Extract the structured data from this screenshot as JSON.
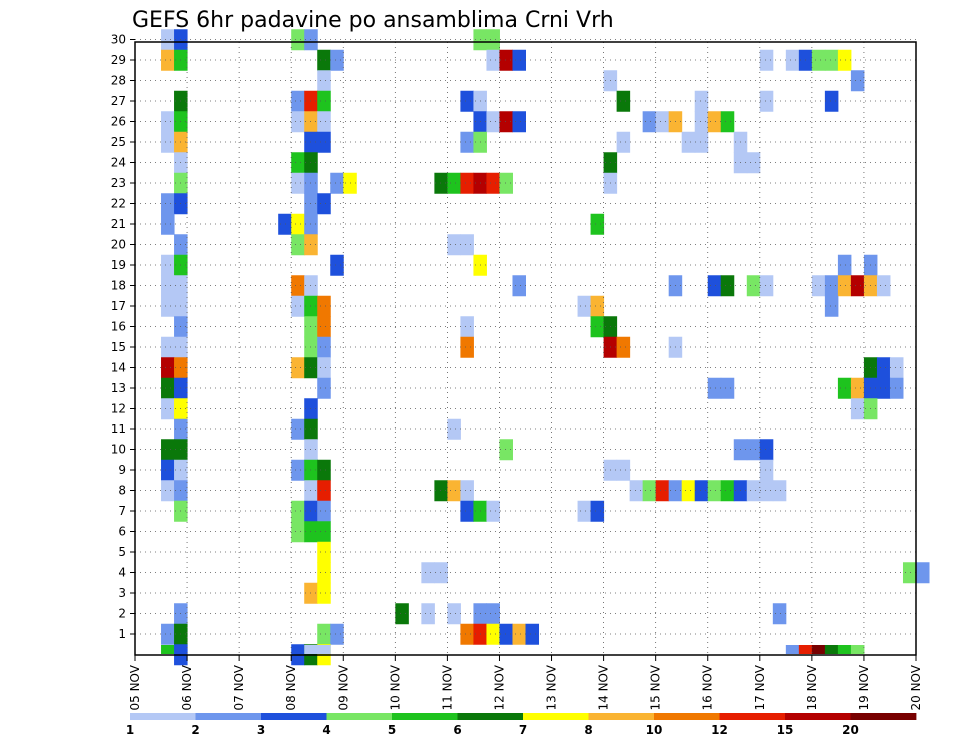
{
  "chart_data": {
    "type": "heatmap",
    "title": "GEFS 6hr padavine po ansamblima Crni Vrh",
    "x_ticks": [
      "05 NOV",
      "06 NOV",
      "07 NOV",
      "08 NOV",
      "09 NOV",
      "10 NOV",
      "11 NOV",
      "12 NOV",
      "13 NOV",
      "14 NOV",
      "15 NOV",
      "16 NOV",
      "17 NOV",
      "18 NOV",
      "19 NOV",
      "20 NOV"
    ],
    "y_ticks": [
      "1",
      "2",
      "3",
      "4",
      "5",
      "6",
      "7",
      "8",
      "9",
      "10",
      "11",
      "12",
      "13",
      "14",
      "15",
      "16",
      "17",
      "18",
      "19",
      "20",
      "21",
      "22",
      "23",
      "24",
      "25",
      "26",
      "27",
      "28",
      "29",
      "30"
    ],
    "x_unit": "6-hour steps from 05 NOV 00 UTC (4 per day)",
    "levels": [
      {
        "label": "1",
        "color": "#b4c8f5"
      },
      {
        "label": "2",
        "color": "#6e96ed"
      },
      {
        "label": "3",
        "color": "#1e50dc"
      },
      {
        "label": "4",
        "color": "#78e664"
      },
      {
        "label": "5",
        "color": "#1ec31e"
      },
      {
        "label": "6",
        "color": "#0a780a"
      },
      {
        "label": "7",
        "color": "#ffff00"
      },
      {
        "label": "8",
        "color": "#fab432"
      },
      {
        "label": "10",
        "color": "#f07800"
      },
      {
        "label": "12",
        "color": "#e61e00"
      },
      {
        "label": "15",
        "color": "#b40000"
      },
      {
        "label": "20",
        "color": "#780000"
      }
    ],
    "cells": [
      [
        2,
        30,
        0
      ],
      [
        3,
        30,
        2
      ],
      [
        12,
        30,
        3
      ],
      [
        13,
        30,
        1
      ],
      [
        26,
        30,
        3
      ],
      [
        27,
        30,
        3
      ],
      [
        2,
        29,
        7
      ],
      [
        3,
        29,
        4
      ],
      [
        14,
        29,
        5
      ],
      [
        15,
        29,
        1
      ],
      [
        27,
        29,
        0
      ],
      [
        28,
        29,
        10
      ],
      [
        29,
        29,
        2
      ],
      [
        48,
        29,
        0
      ],
      [
        50,
        29,
        0
      ],
      [
        51,
        29,
        2
      ],
      [
        52,
        29,
        3
      ],
      [
        53,
        29,
        3
      ],
      [
        54,
        29,
        6
      ],
      [
        14,
        28,
        0
      ],
      [
        36,
        28,
        0
      ],
      [
        55,
        28,
        1
      ],
      [
        3,
        27,
        5
      ],
      [
        12,
        27,
        1
      ],
      [
        13,
        27,
        9
      ],
      [
        14,
        27,
        4
      ],
      [
        25,
        27,
        2
      ],
      [
        26,
        27,
        0
      ],
      [
        37,
        27,
        5
      ],
      [
        43,
        27,
        0
      ],
      [
        48,
        27,
        0
      ],
      [
        53,
        27,
        2
      ],
      [
        2,
        26,
        0
      ],
      [
        3,
        26,
        4
      ],
      [
        12,
        26,
        0
      ],
      [
        13,
        26,
        7
      ],
      [
        14,
        26,
        0
      ],
      [
        26,
        26,
        2
      ],
      [
        27,
        26,
        0
      ],
      [
        28,
        26,
        10
      ],
      [
        29,
        26,
        2
      ],
      [
        39,
        26,
        1
      ],
      [
        40,
        26,
        0
      ],
      [
        41,
        26,
        7
      ],
      [
        43,
        26,
        0
      ],
      [
        44,
        26,
        7
      ],
      [
        45,
        26,
        4
      ],
      [
        2,
        25,
        0
      ],
      [
        3,
        25,
        7
      ],
      [
        13,
        25,
        2
      ],
      [
        14,
        25,
        2
      ],
      [
        25,
        25,
        1
      ],
      [
        26,
        25,
        3
      ],
      [
        37,
        25,
        0
      ],
      [
        42,
        25,
        0
      ],
      [
        43,
        25,
        0
      ],
      [
        46,
        25,
        0
      ],
      [
        3,
        24,
        0
      ],
      [
        12,
        24,
        4
      ],
      [
        13,
        24,
        5
      ],
      [
        36,
        24,
        5
      ],
      [
        46,
        24,
        0
      ],
      [
        47,
        24,
        0
      ],
      [
        3,
        23,
        3
      ],
      [
        12,
        23,
        0
      ],
      [
        13,
        23,
        1
      ],
      [
        15,
        23,
        1
      ],
      [
        16,
        23,
        6
      ],
      [
        23,
        23,
        5
      ],
      [
        24,
        23,
        4
      ],
      [
        25,
        23,
        9
      ],
      [
        26,
        23,
        10
      ],
      [
        27,
        23,
        9
      ],
      [
        28,
        23,
        3
      ],
      [
        36,
        23,
        0
      ],
      [
        2,
        22,
        1
      ],
      [
        3,
        22,
        2
      ],
      [
        13,
        22,
        1
      ],
      [
        14,
        22,
        2
      ],
      [
        2,
        21,
        1
      ],
      [
        11,
        21,
        2
      ],
      [
        12,
        21,
        6
      ],
      [
        13,
        21,
        1
      ],
      [
        35,
        21,
        4
      ],
      [
        3,
        20,
        1
      ],
      [
        12,
        20,
        3
      ],
      [
        13,
        20,
        7
      ],
      [
        24,
        20,
        0
      ],
      [
        25,
        20,
        0
      ],
      [
        2,
        19,
        0
      ],
      [
        3,
        19,
        4
      ],
      [
        15,
        19,
        2
      ],
      [
        26,
        19,
        6
      ],
      [
        54,
        19,
        1
      ],
      [
        56,
        19,
        1
      ],
      [
        2,
        18,
        0
      ],
      [
        3,
        18,
        0
      ],
      [
        12,
        18,
        8
      ],
      [
        13,
        18,
        0
      ],
      [
        29,
        18,
        1
      ],
      [
        41,
        18,
        1
      ],
      [
        44,
        18,
        2
      ],
      [
        45,
        18,
        5
      ],
      [
        47,
        18,
        3
      ],
      [
        48,
        18,
        0
      ],
      [
        52,
        18,
        0
      ],
      [
        53,
        18,
        1
      ],
      [
        54,
        18,
        7
      ],
      [
        55,
        18,
        10
      ],
      [
        56,
        18,
        7
      ],
      [
        57,
        18,
        0
      ],
      [
        2,
        17,
        0
      ],
      [
        3,
        17,
        0
      ],
      [
        12,
        17,
        0
      ],
      [
        13,
        17,
        4
      ],
      [
        14,
        17,
        8
      ],
      [
        34,
        17,
        0
      ],
      [
        35,
        17,
        7
      ],
      [
        53,
        17,
        1
      ],
      [
        3,
        16,
        1
      ],
      [
        13,
        16,
        3
      ],
      [
        14,
        16,
        8
      ],
      [
        25,
        16,
        0
      ],
      [
        35,
        16,
        4
      ],
      [
        36,
        16,
        5
      ],
      [
        2,
        15,
        0
      ],
      [
        3,
        15,
        0
      ],
      [
        13,
        15,
        3
      ],
      [
        14,
        15,
        1
      ],
      [
        25,
        15,
        8
      ],
      [
        36,
        15,
        10
      ],
      [
        37,
        15,
        8
      ],
      [
        41,
        15,
        0
      ],
      [
        2,
        14,
        10
      ],
      [
        3,
        14,
        8
      ],
      [
        12,
        14,
        7
      ],
      [
        13,
        14,
        5
      ],
      [
        14,
        14,
        0
      ],
      [
        56,
        14,
        5
      ],
      [
        57,
        14,
        2
      ],
      [
        58,
        14,
        0
      ],
      [
        2,
        13,
        5
      ],
      [
        3,
        13,
        2
      ],
      [
        14,
        13,
        1
      ],
      [
        44,
        13,
        1
      ],
      [
        45,
        13,
        1
      ],
      [
        54,
        13,
        4
      ],
      [
        55,
        13,
        7
      ],
      [
        56,
        13,
        2
      ],
      [
        57,
        13,
        2
      ],
      [
        58,
        13,
        1
      ],
      [
        2,
        12,
        0
      ],
      [
        3,
        12,
        6
      ],
      [
        13,
        12,
        2
      ],
      [
        55,
        12,
        0
      ],
      [
        56,
        12,
        3
      ],
      [
        3,
        11,
        1
      ],
      [
        12,
        11,
        1
      ],
      [
        13,
        11,
        5
      ],
      [
        24,
        11,
        0
      ],
      [
        2,
        10,
        5
      ],
      [
        3,
        10,
        5
      ],
      [
        13,
        10,
        0
      ],
      [
        28,
        10,
        3
      ],
      [
        46,
        10,
        1
      ],
      [
        47,
        10,
        1
      ],
      [
        48,
        10,
        2
      ],
      [
        2,
        9,
        2
      ],
      [
        3,
        9,
        0
      ],
      [
        12,
        9,
        1
      ],
      [
        13,
        9,
        4
      ],
      [
        14,
        9,
        5
      ],
      [
        36,
        9,
        0
      ],
      [
        37,
        9,
        0
      ],
      [
        48,
        9,
        0
      ],
      [
        2,
        8,
        0
      ],
      [
        3,
        8,
        1
      ],
      [
        13,
        8,
        0
      ],
      [
        14,
        8,
        9
      ],
      [
        23,
        8,
        5
      ],
      [
        24,
        8,
        7
      ],
      [
        25,
        8,
        0
      ],
      [
        38,
        8,
        0
      ],
      [
        39,
        8,
        3
      ],
      [
        40,
        8,
        9
      ],
      [
        41,
        8,
        1
      ],
      [
        42,
        8,
        6
      ],
      [
        43,
        8,
        2
      ],
      [
        44,
        8,
        3
      ],
      [
        45,
        8,
        4
      ],
      [
        46,
        8,
        2
      ],
      [
        47,
        8,
        0
      ],
      [
        48,
        8,
        0
      ],
      [
        49,
        8,
        0
      ],
      [
        3,
        7,
        3
      ],
      [
        12,
        7,
        3
      ],
      [
        13,
        7,
        2
      ],
      [
        14,
        7,
        1
      ],
      [
        25,
        7,
        2
      ],
      [
        26,
        7,
        4
      ],
      [
        27,
        7,
        0
      ],
      [
        34,
        7,
        0
      ],
      [
        35,
        7,
        2
      ],
      [
        12,
        6,
        3
      ],
      [
        13,
        6,
        4
      ],
      [
        14,
        6,
        4
      ],
      [
        14,
        5,
        6
      ],
      [
        14,
        4,
        6
      ],
      [
        22,
        4,
        0
      ],
      [
        23,
        4,
        0
      ],
      [
        59,
        4,
        3
      ],
      [
        60,
        4,
        1
      ],
      [
        13,
        3,
        7
      ],
      [
        14,
        3,
        6
      ],
      [
        3,
        2,
        1
      ],
      [
        20,
        2,
        5
      ],
      [
        22,
        2,
        0
      ],
      [
        24,
        2,
        0
      ],
      [
        26,
        2,
        1
      ],
      [
        27,
        2,
        1
      ],
      [
        49,
        2,
        1
      ],
      [
        2,
        1,
        1
      ],
      [
        3,
        1,
        5
      ],
      [
        14,
        1,
        3
      ],
      [
        15,
        1,
        1
      ],
      [
        25,
        1,
        8
      ],
      [
        26,
        1,
        9
      ],
      [
        27,
        1,
        6
      ],
      [
        28,
        1,
        2
      ],
      [
        29,
        1,
        7
      ],
      [
        30,
        1,
        2
      ],
      [
        3,
        0,
        2
      ],
      [
        12,
        0,
        2
      ],
      [
        13,
        0,
        5
      ],
      [
        14,
        0,
        6
      ]
    ],
    "bottom_row": [
      [
        2,
        4
      ],
      [
        3,
        2
      ],
      [
        13,
        0
      ],
      [
        14,
        0
      ],
      [
        50,
        1
      ],
      [
        51,
        9
      ],
      [
        52,
        11
      ],
      [
        53,
        5
      ],
      [
        54,
        4
      ],
      [
        55,
        3
      ]
    ],
    "grid": "dotted"
  }
}
